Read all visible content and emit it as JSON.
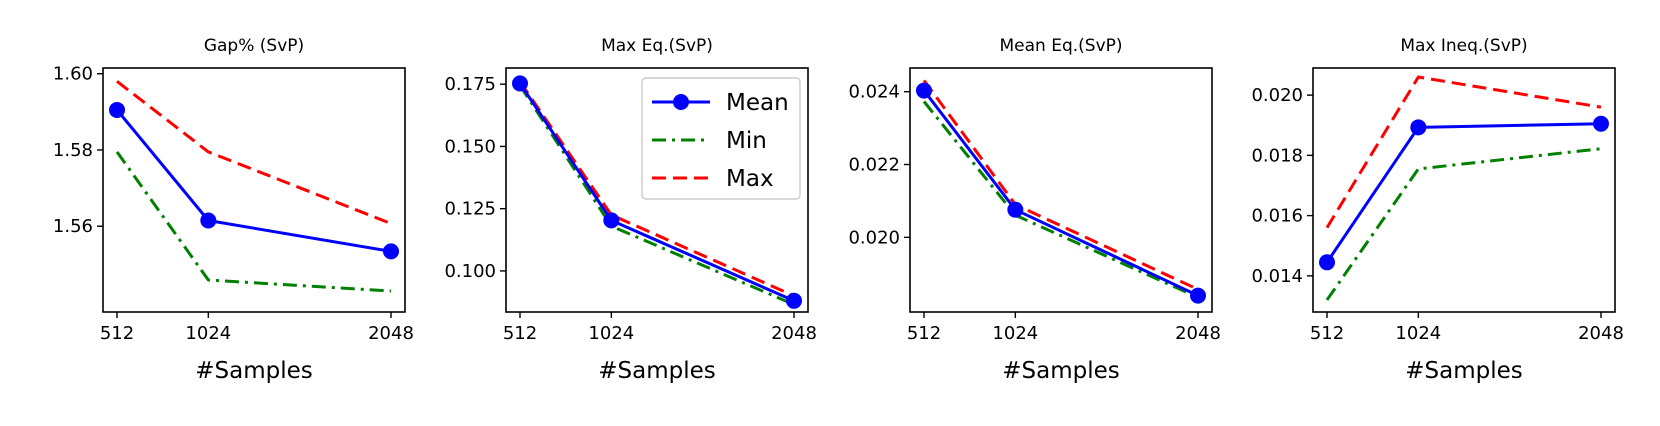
{
  "chart_data": [
    {
      "type": "line",
      "title": "Gap% (SvP)",
      "xlabel": "#Samples",
      "ylabel": "",
      "x": [
        512,
        1024,
        2048
      ],
      "xtick_labels": [
        "512",
        "1024",
        "2048"
      ],
      "ylim": [
        1.5375,
        1.6015
      ],
      "ytick_values": [
        1.56,
        1.58,
        1.6
      ],
      "ytick_labels": [
        "1.56",
        "1.58",
        "1.60"
      ],
      "series": [
        {
          "name": "Mean",
          "values": [
            1.5905,
            1.5615,
            1.5534
          ]
        },
        {
          "name": "Min",
          "values": [
            1.5795,
            1.5459,
            1.543
          ]
        },
        {
          "name": "Max",
          "values": [
            1.598,
            1.5795,
            1.5607
          ]
        }
      ]
    },
    {
      "type": "line",
      "title": "Max Eq.(SvP)",
      "xlabel": "#Samples",
      "ylabel": "",
      "x": [
        512,
        1024,
        2048
      ],
      "xtick_labels": [
        "512",
        "1024",
        "2048"
      ],
      "ylim": [
        0.0835,
        0.1815
      ],
      "ytick_values": [
        0.1,
        0.125,
        0.15,
        0.175
      ],
      "ytick_labels": [
        "0.100",
        "0.125",
        "0.150",
        "0.175"
      ],
      "legend": "top-right",
      "series": [
        {
          "name": "Mean",
          "values": [
            0.1753,
            0.1203,
            0.088
          ]
        },
        {
          "name": "Min",
          "values": [
            0.1745,
            0.118,
            0.0865
          ]
        },
        {
          "name": "Max",
          "values": [
            0.176,
            0.1225,
            0.09
          ]
        }
      ]
    },
    {
      "type": "line",
      "title": "Mean Eq.(SvP)",
      "xlabel": "#Samples",
      "ylabel": "",
      "x": [
        512,
        1024,
        2048
      ],
      "xtick_labels": [
        "512",
        "1024",
        "2048"
      ],
      "ylim": [
        0.01795,
        0.02465
      ],
      "ytick_values": [
        0.02,
        0.022,
        0.024
      ],
      "ytick_labels": [
        "0.020",
        "0.022",
        "0.024"
      ],
      "series": [
        {
          "name": "Mean",
          "values": [
            0.02403,
            0.02076,
            0.0184
          ]
        },
        {
          "name": "Min",
          "values": [
            0.02373,
            0.02061,
            0.01835
          ]
        },
        {
          "name": "Max",
          "values": [
            0.02431,
            0.0209,
            0.01857
          ]
        }
      ]
    },
    {
      "type": "line",
      "title": "Max Ineq.(SvP)",
      "xlabel": "#Samples",
      "ylabel": "",
      "x": [
        512,
        1024,
        2048
      ],
      "xtick_labels": [
        "512",
        "1024",
        "2048"
      ],
      "ylim": [
        0.0128,
        0.0209
      ],
      "ytick_values": [
        0.014,
        0.016,
        0.018,
        0.02
      ],
      "ytick_labels": [
        "0.014",
        "0.016",
        "0.018",
        "0.020"
      ],
      "series": [
        {
          "name": "Mean",
          "values": [
            0.01445,
            0.01893,
            0.01905
          ]
        },
        {
          "name": "Min",
          "values": [
            0.0132,
            0.01755,
            0.01822
          ]
        },
        {
          "name": "Max",
          "values": [
            0.0156,
            0.0206,
            0.0196
          ]
        }
      ]
    }
  ],
  "series_styles": {
    "Mean": {
      "color": "#0000ff",
      "dash": "solid",
      "marker": "circle"
    },
    "Min": {
      "color": "#008000",
      "dash": "dashdot",
      "marker": "none"
    },
    "Max": {
      "color": "#ff0000",
      "dash": "dashed",
      "marker": "none"
    }
  }
}
